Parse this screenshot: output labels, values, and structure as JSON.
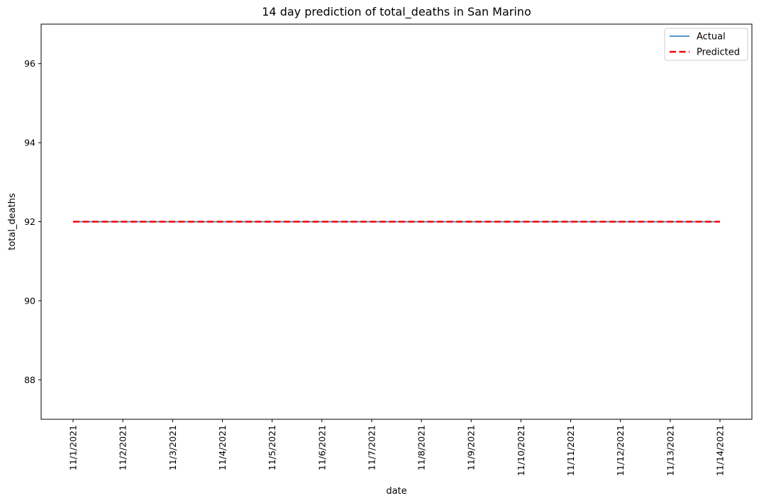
{
  "chart_data": {
    "type": "line",
    "title": "14 day prediction of total_deaths in San Marino",
    "xlabel": "date",
    "ylabel": "total_deaths",
    "categories": [
      "11/1/2021",
      "11/2/2021",
      "11/3/2021",
      "11/4/2021",
      "11/5/2021",
      "11/6/2021",
      "11/7/2021",
      "11/8/2021",
      "11/9/2021",
      "11/10/2021",
      "11/11/2021",
      "11/12/2021",
      "11/13/2021",
      "11/14/2021"
    ],
    "series": [
      {
        "name": "Actual",
        "values": [
          92,
          92,
          92,
          92,
          92,
          92,
          92,
          92,
          92,
          92,
          92,
          92,
          92,
          92
        ],
        "color": "#1f77b4",
        "style": "solid"
      },
      {
        "name": "Predicted",
        "values": [
          92,
          92,
          92,
          92,
          92,
          92,
          92,
          92,
          92,
          92,
          92,
          92,
          92,
          92
        ],
        "color": "#ff0000",
        "style": "dashed"
      }
    ],
    "ylim": [
      87,
      97
    ],
    "yticks": [
      88,
      90,
      92,
      94,
      96
    ],
    "grid": false,
    "legend_position": "top-right"
  }
}
